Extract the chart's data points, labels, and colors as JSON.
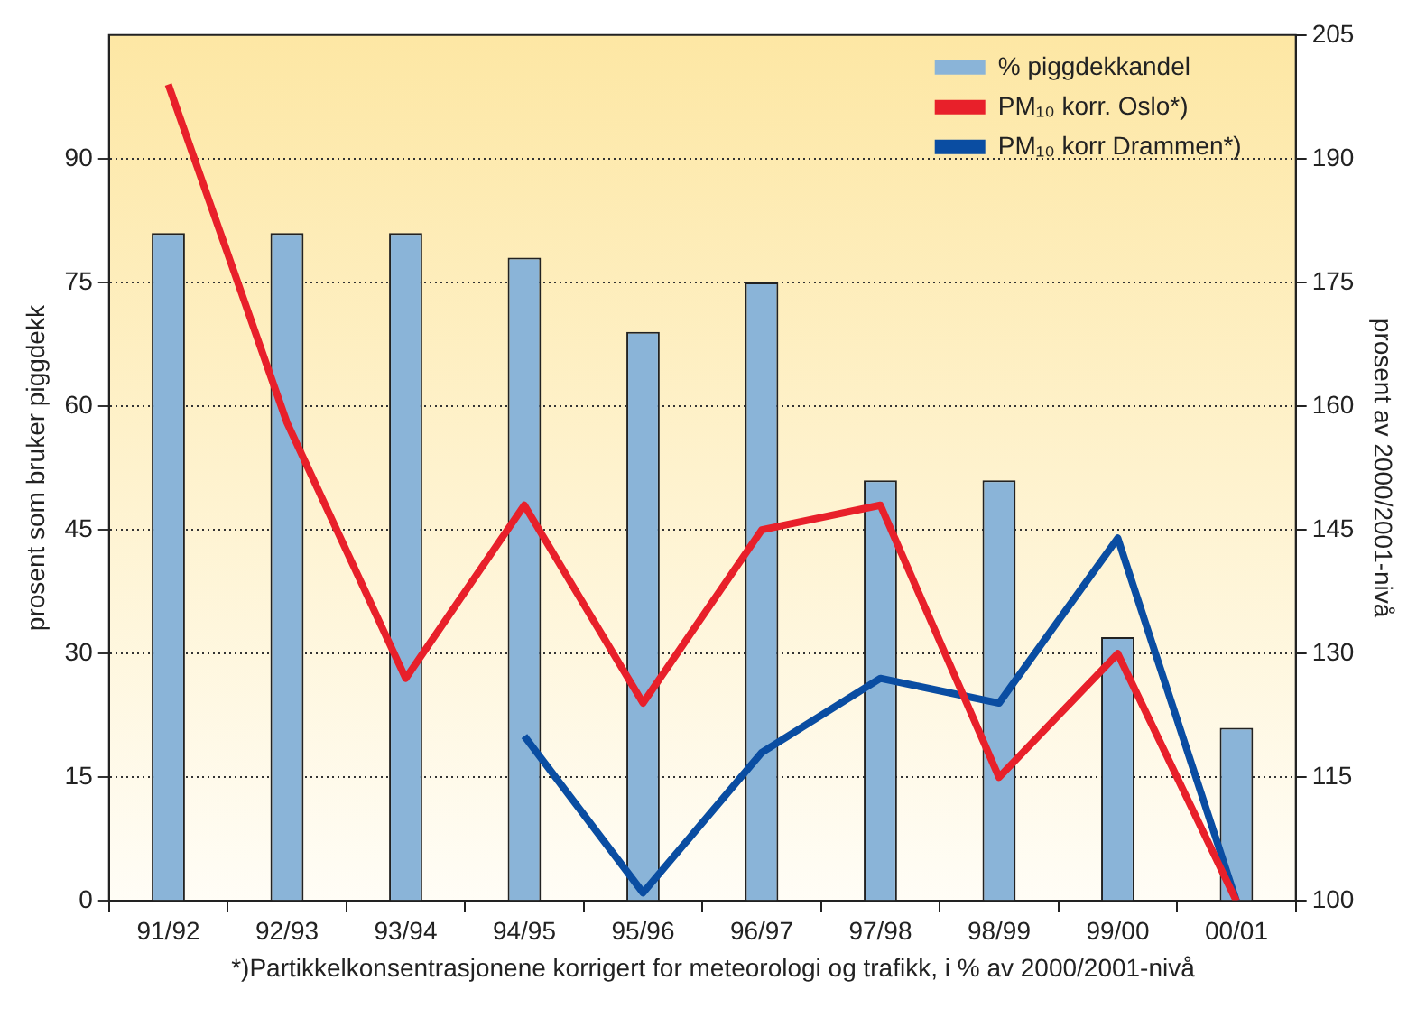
{
  "chart_data": {
    "type": "bar",
    "categories": [
      "91/92",
      "92/93",
      "93/94",
      "94/95",
      "95/96",
      "96/97",
      "97/98",
      "98/99",
      "99/00",
      "00/01"
    ],
    "series": [
      {
        "name": "% piggdekkandel",
        "type": "bar",
        "color": "#8ab4d8",
        "values": [
          81,
          81,
          81,
          78,
          69,
          75,
          51,
          51,
          32,
          21
        ]
      },
      {
        "name": "PM₁₀ korr. Oslo*)",
        "type": "line",
        "axis": "y2",
        "color": "#e8202a",
        "values": [
          199,
          158,
          127,
          148,
          124,
          145,
          148,
          115,
          130,
          100
        ]
      },
      {
        "name": "PM₁₀ korr Drammen*)",
        "type": "line",
        "axis": "y2",
        "color": "#0a4da2",
        "values": [
          null,
          null,
          null,
          120,
          101,
          118,
          127,
          124,
          144,
          100
        ]
      }
    ],
    "ylabel": "prosent som bruker piggdekk",
    "y2label": "prosent av 2000/2001-nivå",
    "ylim": [
      0,
      105
    ],
    "yticks": [
      0,
      15,
      30,
      45,
      60,
      75,
      90
    ],
    "y2lim": [
      100,
      205
    ],
    "y2ticks": [
      100,
      115,
      130,
      145,
      160,
      175,
      190,
      205
    ],
    "annotations": [
      "*)Partikkelkonsentrasjonene korrigert for meteorologi og trafikk, i % av 2000/2001-nivå"
    ],
    "grid": "y",
    "legend": "top right",
    "marker": "none",
    "line_style": "solid"
  }
}
